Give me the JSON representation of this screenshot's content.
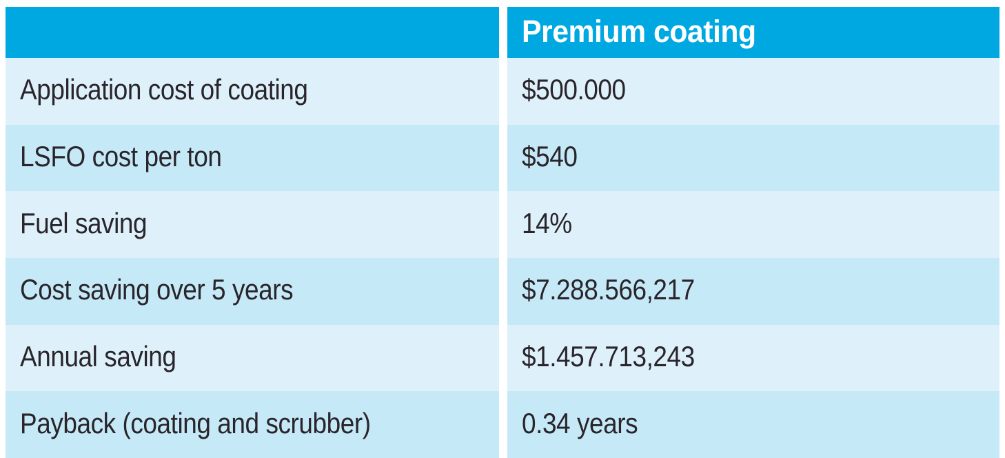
{
  "table": {
    "header": {
      "col1": "",
      "col2": "Premium coating"
    },
    "rows": [
      {
        "label": "Application cost of coating",
        "value": "$500.000"
      },
      {
        "label": "LSFO cost per ton",
        "value": "$540"
      },
      {
        "label": "Fuel saving",
        "value": "14%"
      },
      {
        "label": "Cost saving over 5 years",
        "value": "$7.288.566,217"
      },
      {
        "label": "Annual saving",
        "value": "$1.457.713,243"
      },
      {
        "label": "Payback (coating and scrubber)",
        "value": "0.34 years"
      }
    ]
  },
  "colors": {
    "header_bg": "#00a8e1",
    "row_light": "#def1fb",
    "row_dark": "#c6e9f8",
    "header_text": "#ffffff",
    "body_text": "#29252a"
  },
  "chart_data": {
    "type": "table",
    "columns": [
      "",
      "Premium coating"
    ],
    "rows": [
      [
        "Application cost of coating",
        "$500.000"
      ],
      [
        "LSFO cost per ton",
        "$540"
      ],
      [
        "Fuel saving",
        "14%"
      ],
      [
        "Cost saving over 5 years",
        "$7.288.566,217"
      ],
      [
        "Annual saving",
        "$1.457.713,243"
      ],
      [
        "Payback (coating and scrubber)",
        "0.34 years"
      ]
    ]
  }
}
